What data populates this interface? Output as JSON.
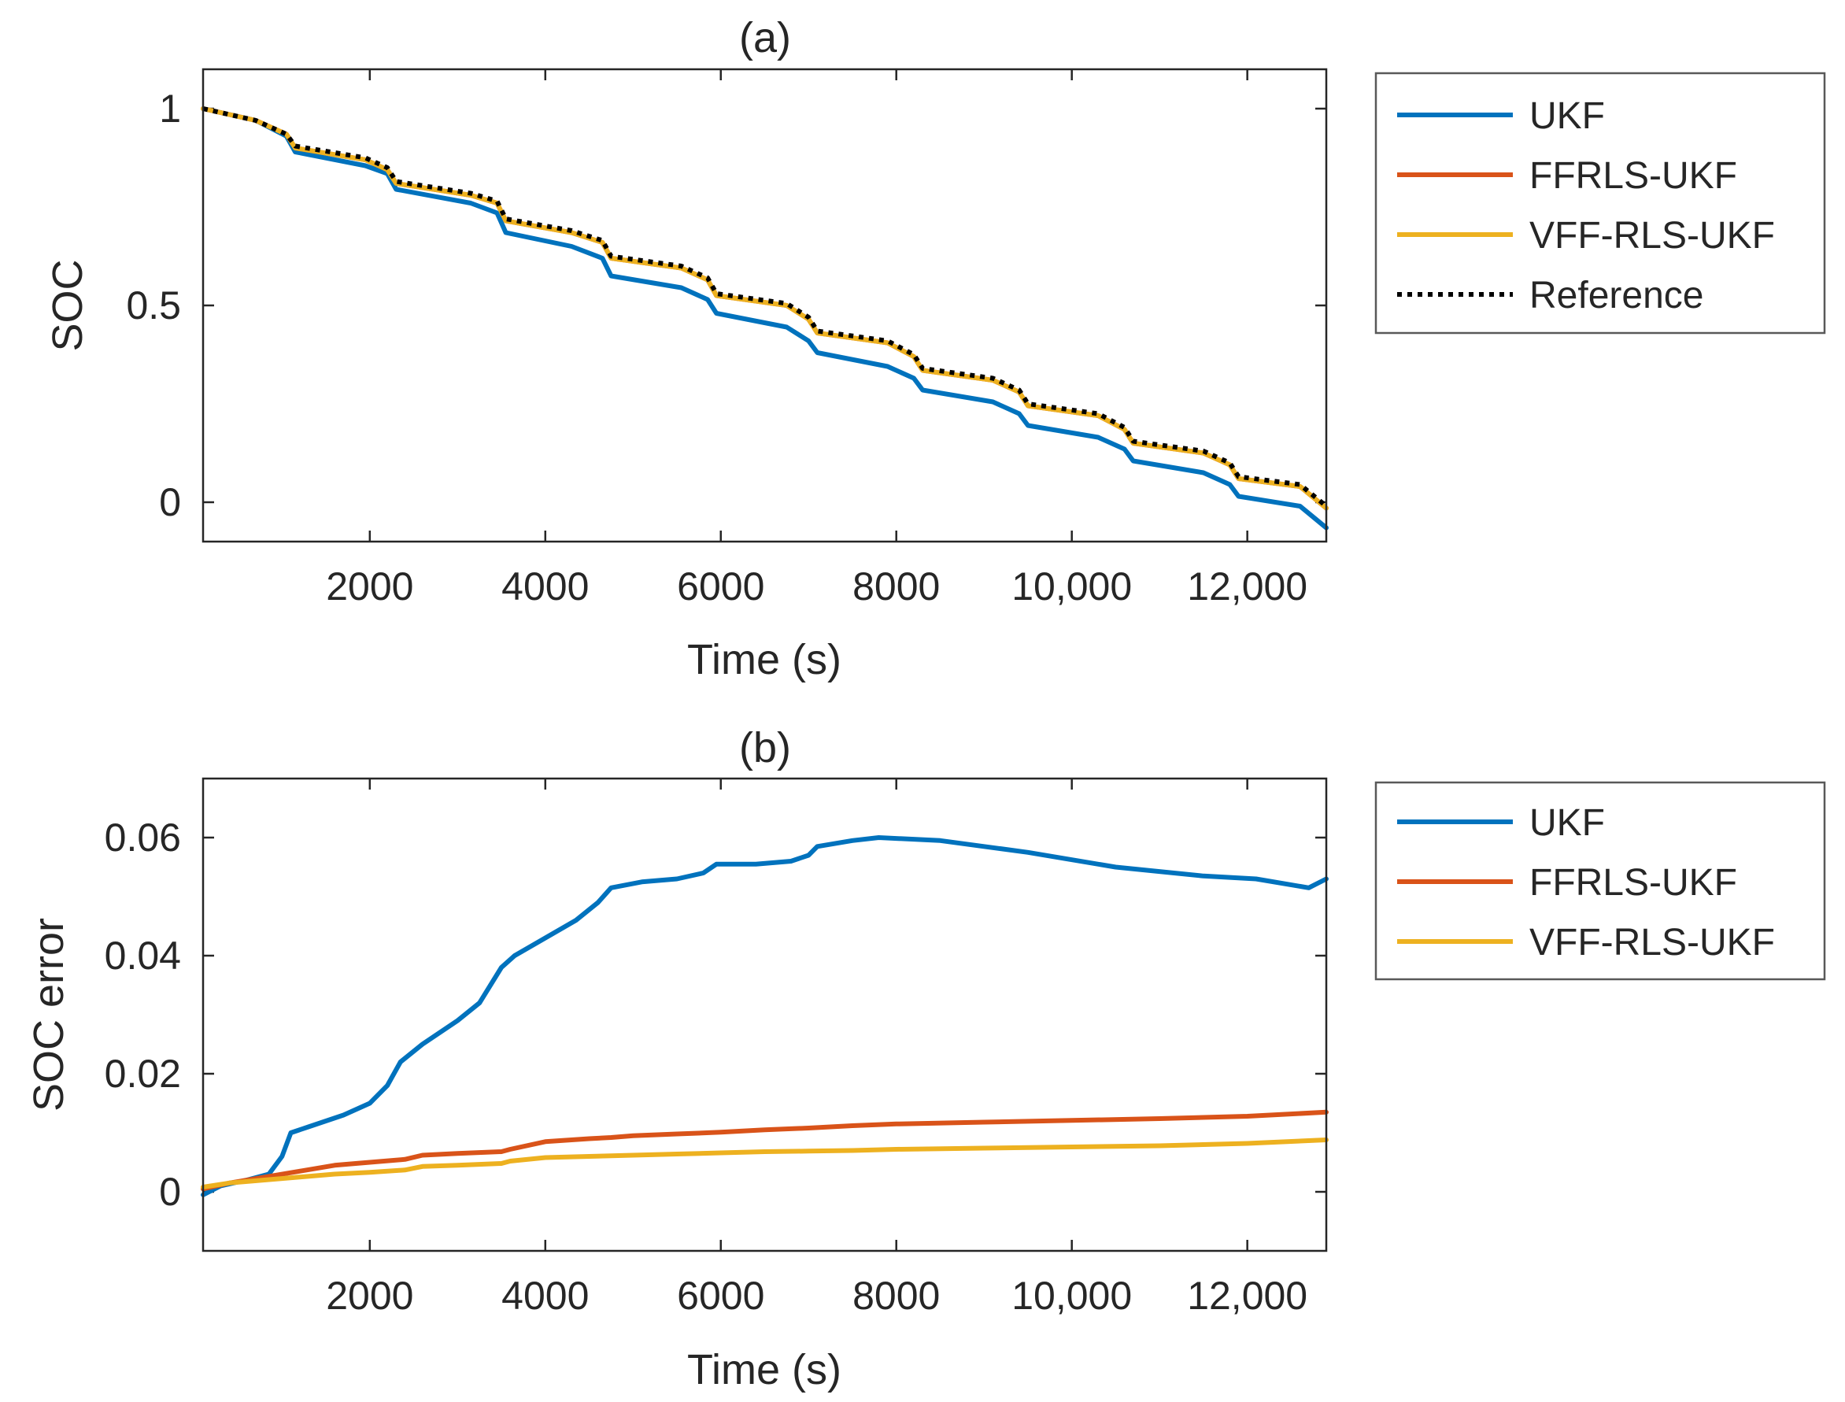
{
  "colors": {
    "ukf": "#0072BD",
    "ffrls": "#D95319",
    "vff": "#EDB120",
    "reference": "#000000",
    "axis": "#262626",
    "box": "#595959"
  },
  "chart_data": [
    {
      "type": "line",
      "id": "a",
      "title": "(a)",
      "xlabel": "Time (s)",
      "ylabel": "SOC",
      "xlim": [
        100,
        12900
      ],
      "ylim": [
        -0.1,
        1.1
      ],
      "xticks": [
        2000,
        4000,
        6000,
        8000,
        10000,
        12000
      ],
      "xtick_labels": [
        "2000",
        "4000",
        "6000",
        "8000",
        "10,000",
        "12,000"
      ],
      "yticks": [
        0,
        0.5,
        1
      ],
      "ytick_labels": [
        "0",
        "0.5",
        "1"
      ],
      "legend_position": "outside-right-top",
      "series": [
        {
          "name": "UKF",
          "color_key": "ukf",
          "style": "solid",
          "x": [
            100,
            700,
            1050,
            1150,
            1950,
            2200,
            2300,
            3150,
            3450,
            3550,
            4300,
            4650,
            4750,
            5550,
            5850,
            5950,
            6750,
            7000,
            7100,
            7900,
            8200,
            8300,
            9100,
            9400,
            9500,
            10300,
            10600,
            10700,
            11500,
            11800,
            11900,
            12600,
            12900
          ],
          "y": [
            1.0,
            0.97,
            0.93,
            0.89,
            0.855,
            0.835,
            0.795,
            0.76,
            0.735,
            0.685,
            0.65,
            0.62,
            0.575,
            0.545,
            0.515,
            0.48,
            0.445,
            0.41,
            0.38,
            0.345,
            0.315,
            0.285,
            0.255,
            0.225,
            0.195,
            0.165,
            0.135,
            0.105,
            0.075,
            0.045,
            0.015,
            -0.01,
            -0.065
          ]
        },
        {
          "name": "FFRLS-UKF",
          "color_key": "ffrls",
          "style": "solid",
          "x": [
            100,
            700,
            1050,
            1150,
            1950,
            2200,
            2300,
            3150,
            3450,
            3550,
            4300,
            4650,
            4750,
            5550,
            5850,
            5950,
            6750,
            7000,
            7100,
            7900,
            8200,
            8300,
            9100,
            9400,
            9500,
            10300,
            10600,
            10700,
            11500,
            11800,
            11900,
            12600,
            12900
          ],
          "y": [
            1.0,
            0.97,
            0.935,
            0.9,
            0.87,
            0.845,
            0.81,
            0.78,
            0.76,
            0.715,
            0.685,
            0.66,
            0.62,
            0.595,
            0.565,
            0.525,
            0.5,
            0.465,
            0.43,
            0.405,
            0.37,
            0.335,
            0.31,
            0.28,
            0.245,
            0.22,
            0.185,
            0.15,
            0.125,
            0.095,
            0.06,
            0.04,
            -0.015
          ]
        },
        {
          "name": "VFF-RLS-UKF",
          "color_key": "vff",
          "style": "solid",
          "x": [
            100,
            700,
            1050,
            1150,
            1950,
            2200,
            2300,
            3150,
            3450,
            3550,
            4300,
            4650,
            4750,
            5550,
            5850,
            5950,
            6750,
            7000,
            7100,
            7900,
            8200,
            8300,
            9100,
            9400,
            9500,
            10300,
            10600,
            10700,
            11500,
            11800,
            11900,
            12600,
            12900
          ],
          "y": [
            1.0,
            0.97,
            0.935,
            0.9,
            0.87,
            0.845,
            0.81,
            0.78,
            0.76,
            0.715,
            0.685,
            0.66,
            0.62,
            0.595,
            0.565,
            0.525,
            0.5,
            0.465,
            0.43,
            0.405,
            0.37,
            0.335,
            0.31,
            0.28,
            0.245,
            0.22,
            0.185,
            0.15,
            0.125,
            0.095,
            0.06,
            0.04,
            -0.015
          ]
        },
        {
          "name": "Reference",
          "color_key": "reference",
          "style": "dotted",
          "x": [
            100,
            700,
            1050,
            1150,
            1950,
            2200,
            2300,
            3150,
            3450,
            3550,
            4300,
            4650,
            4750,
            5550,
            5850,
            5950,
            6750,
            7000,
            7100,
            7900,
            8200,
            8300,
            9100,
            9400,
            9500,
            10300,
            10600,
            10700,
            11500,
            11800,
            11900,
            12600,
            12900
          ],
          "y": [
            1.0,
            0.97,
            0.935,
            0.905,
            0.875,
            0.85,
            0.815,
            0.785,
            0.765,
            0.72,
            0.69,
            0.665,
            0.625,
            0.6,
            0.57,
            0.53,
            0.505,
            0.47,
            0.435,
            0.41,
            0.375,
            0.34,
            0.315,
            0.285,
            0.25,
            0.225,
            0.19,
            0.155,
            0.13,
            0.1,
            0.065,
            0.045,
            -0.01
          ]
        }
      ]
    },
    {
      "type": "line",
      "id": "b",
      "title": "(b)",
      "xlabel": "Time (s)",
      "ylabel": "SOC error",
      "xlim": [
        100,
        12900
      ],
      "ylim": [
        -0.01,
        0.07
      ],
      "xticks": [
        2000,
        4000,
        6000,
        8000,
        10000,
        12000
      ],
      "xtick_labels": [
        "2000",
        "4000",
        "6000",
        "8000",
        "10,000",
        "12,000"
      ],
      "yticks": [
        0,
        0.02,
        0.04,
        0.06
      ],
      "ytick_labels": [
        "0",
        "0.02",
        "0.04",
        "0.06"
      ],
      "legend_position": "outside-right-top",
      "series": [
        {
          "name": "UKF",
          "color_key": "ukf",
          "style": "solid",
          "x": [
            100,
            300,
            600,
            850,
            1000,
            1100,
            1300,
            1700,
            2000,
            2200,
            2350,
            2600,
            3000,
            3250,
            3500,
            3650,
            4000,
            4350,
            4600,
            4750,
            5100,
            5500,
            5800,
            5950,
            6400,
            6800,
            7000,
            7100,
            7500,
            7800,
            8500,
            9500,
            10500,
            11500,
            12100,
            12700,
            12900
          ],
          "y": [
            -0.0005,
            0.001,
            0.002,
            0.003,
            0.006,
            0.01,
            0.011,
            0.013,
            0.015,
            0.018,
            0.022,
            0.025,
            0.029,
            0.032,
            0.038,
            0.04,
            0.043,
            0.046,
            0.049,
            0.0515,
            0.0525,
            0.053,
            0.054,
            0.0555,
            0.0555,
            0.056,
            0.057,
            0.0585,
            0.0595,
            0.06,
            0.0595,
            0.0575,
            0.055,
            0.0535,
            0.053,
            0.0515,
            0.053
          ]
        },
        {
          "name": "FFRLS-UKF",
          "color_key": "ffrls",
          "style": "solid",
          "x": [
            100,
            400,
            800,
            1200,
            1600,
            2000,
            2400,
            2600,
            3000,
            3500,
            3600,
            4000,
            4500,
            4750,
            5000,
            5500,
            6000,
            6500,
            7000,
            7500,
            8000,
            9000,
            10000,
            11000,
            12000,
            12900
          ],
          "y": [
            0.0005,
            0.0015,
            0.0025,
            0.0035,
            0.0045,
            0.005,
            0.0055,
            0.0062,
            0.0065,
            0.0068,
            0.0072,
            0.0085,
            0.009,
            0.0092,
            0.0095,
            0.0098,
            0.0101,
            0.0105,
            0.0108,
            0.0112,
            0.0115,
            0.0118,
            0.0121,
            0.0124,
            0.0128,
            0.0135
          ]
        },
        {
          "name": "VFF-RLS-UKF",
          "color_key": "vff",
          "style": "solid",
          "x": [
            100,
            400,
            800,
            1200,
            1600,
            2000,
            2400,
            2600,
            3000,
            3500,
            3600,
            4000,
            4500,
            5000,
            5500,
            6000,
            6500,
            7000,
            7500,
            8000,
            9000,
            10000,
            11000,
            12000,
            12900
          ],
          "y": [
            0.0008,
            0.0015,
            0.002,
            0.0025,
            0.003,
            0.0033,
            0.0037,
            0.0043,
            0.0045,
            0.0048,
            0.0052,
            0.0058,
            0.006,
            0.0062,
            0.0064,
            0.0066,
            0.0068,
            0.0069,
            0.007,
            0.0072,
            0.0074,
            0.0076,
            0.0078,
            0.0082,
            0.0088
          ]
        }
      ]
    }
  ]
}
